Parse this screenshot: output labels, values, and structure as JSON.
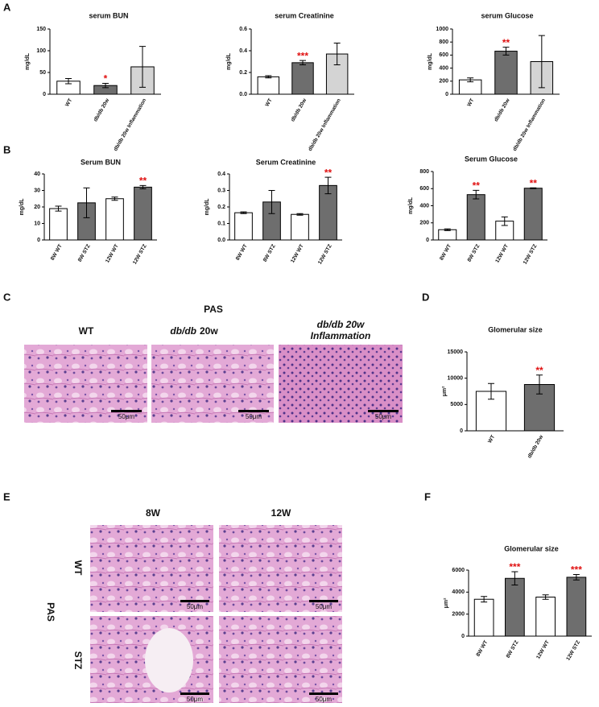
{
  "panels": [
    "A",
    "B",
    "C",
    "D",
    "E",
    "F"
  ],
  "micrographs_c": {
    "stain": "PAS",
    "columns": [
      "WT",
      "db/db",
      "20w",
      "db/db 20w",
      "Inflammation"
    ],
    "scale_bars": [
      "50μm",
      "50μm",
      "50μm"
    ]
  },
  "micrographs_e": {
    "stain": "PAS",
    "columns": [
      "8W",
      "12W"
    ],
    "rows": [
      "WT",
      "STZ"
    ],
    "scale_bars": [
      "50μm",
      "50μm",
      "50μm",
      "50μm"
    ]
  },
  "chart_data": [
    {
      "type": "bar",
      "title": "serum BUN",
      "y_label": "mg/dL",
      "categories": [
        "WT",
        "db/db 20w",
        "db/db 20w Inflammation"
      ],
      "values": [
        30,
        20,
        63
      ],
      "errors": [
        6,
        5,
        47
      ],
      "colors": [
        "#ffffff",
        "#6e6e6e",
        "#d4d4d4"
      ],
      "stars": [
        null,
        "*",
        null
      ],
      "ylim": [
        0,
        150
      ],
      "yticks": [
        0,
        50,
        100,
        150
      ]
    },
    {
      "type": "bar",
      "title": "serum Creatinine",
      "y_label": "mg/dL",
      "categories": [
        "WT",
        "db/db 20w",
        "db/db 20w Inflammation"
      ],
      "values": [
        0.16,
        0.29,
        0.37
      ],
      "errors": [
        0.01,
        0.02,
        0.1
      ],
      "colors": [
        "#ffffff",
        "#6e6e6e",
        "#d4d4d4"
      ],
      "stars": [
        null,
        "***",
        null
      ],
      "ylim": [
        0,
        0.6
      ],
      "yticks": [
        {
          "value": 0,
          "label": "0.0"
        },
        0.2,
        0.4,
        0.6
      ]
    },
    {
      "type": "bar",
      "title": "serum Glucose",
      "y_label": "mg/dL",
      "categories": [
        "WT",
        "db/db 20w",
        "db/db 20w Inflammation"
      ],
      "values": [
        220,
        660,
        500
      ],
      "errors": [
        30,
        60,
        400
      ],
      "colors": [
        "#ffffff",
        "#6e6e6e",
        "#d4d4d4"
      ],
      "stars": [
        null,
        "**",
        null
      ],
      "ylim": [
        0,
        1000
      ],
      "yticks": [
        0,
        200,
        400,
        600,
        800,
        1000
      ]
    },
    {
      "type": "bar",
      "title": "Serum BUN",
      "y_label": "mg/dL",
      "categories": [
        "8W WT",
        "8W STZ",
        "12W WT",
        "12W STZ"
      ],
      "values": [
        19,
        22.5,
        25,
        32
      ],
      "errors": [
        1.5,
        9,
        1,
        1
      ],
      "colors": [
        "#ffffff",
        "#6e6e6e",
        "#ffffff",
        "#6e6e6e"
      ],
      "stars": [
        null,
        null,
        null,
        "**"
      ],
      "ylim": [
        0,
        40
      ],
      "yticks": [
        0,
        10,
        20,
        30,
        40
      ]
    },
    {
      "type": "bar",
      "title": "Serum Creatinine",
      "y_label": "mg/dL",
      "categories": [
        "8W WT",
        "8W STZ",
        "12W WT",
        "12W STZ"
      ],
      "values": [
        0.165,
        0.23,
        0.155,
        0.33
      ],
      "errors": [
        0.005,
        0.07,
        0.005,
        0.05
      ],
      "colors": [
        "#ffffff",
        "#6e6e6e",
        "#ffffff",
        "#6e6e6e"
      ],
      "stars": [
        null,
        null,
        null,
        "**"
      ],
      "ylim": [
        0,
        0.4
      ],
      "yticks": [
        {
          "value": 0,
          "label": "0.0"
        },
        0.1,
        0.2,
        0.3,
        0.4
      ]
    },
    {
      "type": "bar",
      "title": "Serum Glucose",
      "y_label": "mg/dL",
      "categories": [
        "8W WT",
        "8W STZ",
        "12W WT",
        "12W STZ"
      ],
      "values": [
        120,
        530,
        220,
        605
      ],
      "errors": [
        10,
        50,
        50,
        5
      ],
      "colors": [
        "#ffffff",
        "#6e6e6e",
        "#ffffff",
        "#6e6e6e"
      ],
      "stars": [
        null,
        "**",
        null,
        "**"
      ],
      "ylim": [
        0,
        800
      ],
      "yticks": [
        0,
        200,
        400,
        600,
        800
      ]
    },
    {
      "type": "bar",
      "title": "Glomerular size",
      "y_label": "μm²",
      "categories": [
        "WT",
        "db/db 20w"
      ],
      "values": [
        7500,
        8800
      ],
      "errors": [
        1500,
        1800
      ],
      "colors": [
        "#ffffff",
        "#6e6e6e"
      ],
      "stars": [
        null,
        "**"
      ],
      "ylim": [
        0,
        15000
      ],
      "yticks": [
        0,
        5000,
        10000,
        15000
      ]
    },
    {
      "type": "bar",
      "title": "Glomerular size",
      "y_label": "μm²",
      "categories": [
        "8W WT",
        "8W STZ",
        "12W WT",
        "12W STZ"
      ],
      "values": [
        3350,
        5250,
        3550,
        5350
      ],
      "errors": [
        250,
        600,
        200,
        250
      ],
      "colors": [
        "#ffffff",
        "#6e6e6e",
        "#ffffff",
        "#6e6e6e"
      ],
      "stars": [
        null,
        "***",
        null,
        "***"
      ],
      "ylim": [
        0,
        6000
      ],
      "yticks": [
        0,
        2000,
        4000,
        6000
      ]
    }
  ]
}
